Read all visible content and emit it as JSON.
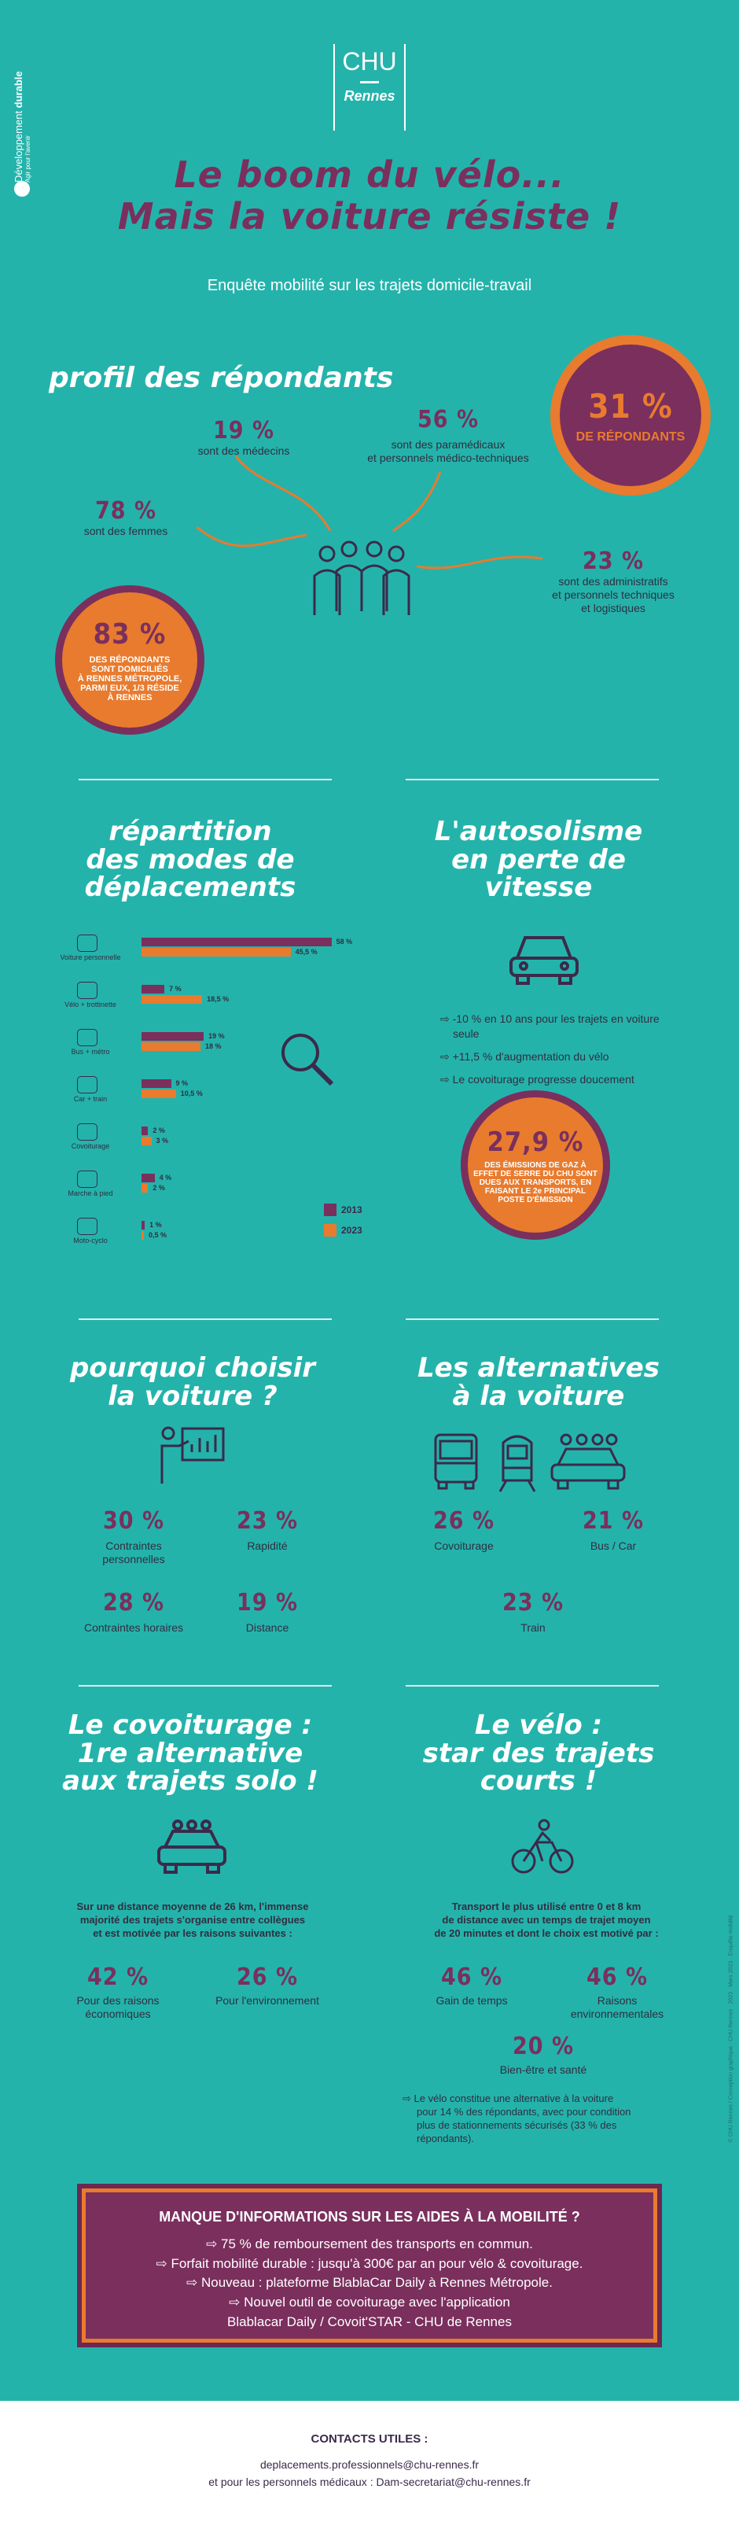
{
  "sidebar_label": {
    "prefix": "Développement ",
    "strong": "durable",
    "sub": "Agir pour l'avenir"
  },
  "logo": {
    "chu": "CHU",
    "rennes": "Rennes"
  },
  "header": {
    "title_line1": "Le boom du vélo...",
    "title_line2": "Mais la voiture résiste !",
    "subtitle": "Enquête mobilité sur les trajets domicile-travail"
  },
  "profil": {
    "title": "profil des répondants",
    "respondents": {
      "value": "31 %",
      "label": "DE RÉPONDANTS"
    },
    "medecins": {
      "value": "19 %",
      "label": "sont des médecins"
    },
    "paramed": {
      "value": "56 %",
      "label1": "sont des paramédicaux",
      "label2": "et personnels médico-techniques"
    },
    "femmes": {
      "value": "78 %",
      "label": "sont des femmes"
    },
    "admin": {
      "value": "23 %",
      "label1": "sont des administratifs",
      "label2": "et personnels techniques",
      "label3": "et logistiques"
    },
    "rennes": {
      "value": "83 %",
      "l1": "DES RÉPONDANTS",
      "l2": "SONT DOMICILIÉS",
      "l3": "À RENNES MÉTROPOLE,",
      "l4": "PARMI EUX, 1/3 RÉSIDE",
      "l5": "À RENNES"
    }
  },
  "repartition": {
    "title1": "répartition",
    "title2": "des modes de",
    "title3": "déplacements",
    "legend": [
      "2013",
      "2023"
    ],
    "modes": [
      {
        "label": "Voiture personnelle",
        "v2013": "58 %",
        "v2023": "45,5 %"
      },
      {
        "label": "Vélo + trottinette",
        "v2013": "7 %",
        "v2023": "18,5 %"
      },
      {
        "label": "Bus + métro",
        "v2013": "19 %",
        "v2023": "18 %"
      },
      {
        "label": "Car + train",
        "v2013": "9 %",
        "v2023": "10,5 %"
      },
      {
        "label": "Covoiturage",
        "v2013": "2 %",
        "v2023": "3 %"
      },
      {
        "label": "Marche à pied",
        "v2013": "4 %",
        "v2023": "2 %"
      },
      {
        "label": "Moto-cyclo",
        "v2013": "1 %",
        "v2023": "0,5 %"
      }
    ]
  },
  "chart_data": {
    "type": "bar",
    "categories": [
      "Voiture personnelle",
      "Vélo + trottinette",
      "Bus + métro",
      "Car + train",
      "Covoiturage",
      "Marche à pied",
      "Moto-cyclo"
    ],
    "series": [
      {
        "name": "2013",
        "values": [
          58,
          7,
          19,
          9,
          2,
          4,
          1
        ]
      },
      {
        "name": "2023",
        "values": [
          45.5,
          18.5,
          18,
          10.5,
          3,
          2,
          0.5
        ]
      }
    ],
    "orientation": "horizontal",
    "legend": "bottom-right",
    "colors": {
      "2013": "#7a2f5d",
      "2023": "#e87b2e"
    }
  },
  "autosolisme": {
    "title1": "L'autosolisme",
    "title2": "en perte de",
    "title3": "vitesse",
    "bullets": [
      "-10 % en 10 ans pour les trajets en voiture",
      "seule",
      "+11,5 % d'augmentation du vélo",
      "Le covoiturage progresse doucement"
    ],
    "ges": {
      "value": "27,9 %",
      "l1": "DES ÉMISSIONS DE GAZ À",
      "l2": "EFFET DE SERRE DU CHU SONT",
      "l3": "DUES AUX TRANSPORTS, EN",
      "l4": "FAISANT LE 2e PRINCIPAL",
      "l5": "POSTE D'ÉMISSION"
    }
  },
  "pourquoi": {
    "title1": "pourquoi choisir",
    "title2": "la voiture ?",
    "items": [
      {
        "value": "30 %",
        "label1": "Contraintes",
        "label2": "personnelles"
      },
      {
        "value": "23 %",
        "label1": "Rapidité",
        "label2": ""
      },
      {
        "value": "28 %",
        "label1": "Contraintes horaires",
        "label2": ""
      },
      {
        "value": "19 %",
        "label1": "Distance",
        "label2": ""
      }
    ]
  },
  "alternatives": {
    "title1": "Les alternatives",
    "title2": "à la voiture",
    "items": [
      {
        "value": "26 %",
        "label": "Covoiturage"
      },
      {
        "value": "21 %",
        "label": "Bus / Car"
      },
      {
        "value": "23 %",
        "label": "Train"
      }
    ]
  },
  "covoiturage": {
    "title1": "Le covoiturage :",
    "title2": "1re alternative",
    "title3": "aux trajets solo !",
    "text1": "Sur une distance moyenne de 26 km, l'immense",
    "text2": "majorité des trajets s'organise entre collègues",
    "text3": "et est motivée par les raisons suivantes :",
    "items": [
      {
        "value": "42 %",
        "label1": "Pour des raisons",
        "label2": "économiques"
      },
      {
        "value": "26 %",
        "label1": "Pour l'environnement",
        "label2": ""
      }
    ]
  },
  "velo": {
    "title1": "Le vélo :",
    "title2": "star des trajets",
    "title3": "courts !",
    "text1": "Transport le plus utilisé entre 0 et 8 km",
    "text2": "de distance avec un temps de trajet moyen",
    "text3": "de 20 minutes et dont le choix est motivé par :",
    "items": [
      {
        "value": "46 %",
        "label1": "Gain de temps",
        "label2": ""
      },
      {
        "value": "46 %",
        "label1": "Raisons",
        "label2": "environnementales"
      },
      {
        "value": "20 %",
        "label1": "Bien-être et santé",
        "label2": ""
      }
    ],
    "note1": "Le vélo constitue une alternative à la voiture",
    "note2": "pour 14 % des répondants, avec pour condition",
    "note3": "plus de stationnements sécurisés (33 % des",
    "note4": "répondants)."
  },
  "info": {
    "title": "MANQUE D'INFORMATIONS SUR LES AIDES À LA MOBILITÉ ?",
    "lines": [
      "⇨ 75 % de remboursement des transports en commun.",
      "⇨ Forfait mobilité durable : jusqu'à 300€ par an pour vélo & covoiturage.",
      "⇨ Nouveau : plateforme BlablaCar Daily à Rennes Métropole.",
      "⇨ Nouvel outil de covoiturage avec l'application",
      "Blablacar Daily / Covoit'STAR - CHU de Rennes"
    ]
  },
  "credits": "© CHU Rennes / Conception graphique : CHU Rennes · 2023 · Mars 2023 · Enquête mobilité",
  "footer": {
    "title": "CONTACTS UTILES :",
    "line1": "deplacements.professionnels@chu-rennes.fr",
    "line2": "et pour les personnels médicaux : Dam-secretariat@chu-rennes.fr"
  }
}
